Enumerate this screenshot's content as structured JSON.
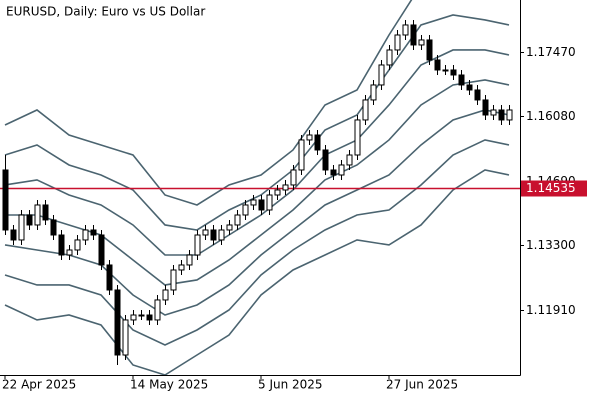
{
  "chart_data": {
    "type": "candlestick",
    "title": "EURUSD, Daily:  Euro vs US Dollar",
    "categories": [
      "22 Apr 2025",
      null,
      null,
      null,
      null,
      null,
      null,
      null,
      null,
      null,
      null,
      null,
      null,
      null,
      null,
      null,
      "14 May 2025",
      null,
      null,
      null,
      null,
      null,
      null,
      null,
      null,
      null,
      null,
      null,
      null,
      null,
      null,
      null,
      "5 Jun 2025",
      null,
      null,
      null,
      null,
      null,
      null,
      null,
      null,
      null,
      null,
      null,
      null,
      null,
      null,
      null,
      "27 Jun 2025",
      null,
      null,
      null,
      null,
      null,
      null,
      null,
      null,
      null,
      null,
      null,
      null,
      null,
      null,
      null
    ],
    "open": [
      1.14927,
      1.13634,
      1.13419,
      1.13957,
      1.13742,
      1.14173,
      1.1385,
      1.13526,
      1.13095,
      1.13203,
      1.13419,
      1.13634,
      1.13526,
      1.1288,
      1.12341,
      1.1094,
      1.11695,
      1.11802,
      1.11802,
      1.11695,
      1.12126,
      1.12341,
      1.12772,
      1.1288,
      1.13095,
      1.13526,
      1.13634,
      1.13419,
      1.13634,
      1.13742,
      1.13957,
      1.14173,
      1.14281,
      1.14065,
      1.14388,
      1.14496,
      1.14604,
      1.14927,
      1.15574,
      1.15681,
      1.15358,
      1.14927,
      1.14819,
      1.15035,
      1.1525,
      1.16005,
      1.16436,
      1.16759,
      1.1719,
      1.17513,
      1.17836,
      1.18052,
      1.17621,
      1.17729,
      1.17298,
      1.17082,
      1.17082,
      1.16974,
      1.16759,
      1.16651,
      1.16436,
      1.16112,
      1.1622,
      1.16005
    ],
    "high": [
      1.1525,
      1.13742,
      1.14065,
      1.14065,
      1.14281,
      1.14281,
      1.13957,
      1.13634,
      1.13311,
      1.13526,
      1.13742,
      1.13742,
      1.13634,
      1.12988,
      1.12449,
      1.11802,
      1.1191,
      1.1191,
      1.1191,
      1.12233,
      1.12449,
      1.1288,
      1.12988,
      1.13203,
      1.13634,
      1.13742,
      1.13742,
      1.13742,
      1.1385,
      1.14065,
      1.14281,
      1.14388,
      1.14388,
      1.14496,
      1.14604,
      1.14712,
      1.15035,
      1.15681,
      1.15789,
      1.15789,
      1.15466,
      1.15035,
      1.15143,
      1.15358,
      1.16112,
      1.16543,
      1.16867,
      1.17298,
      1.17621,
      1.17944,
      1.1816,
      1.1816,
      1.17836,
      1.17836,
      1.17405,
      1.1719,
      1.1719,
      1.17082,
      1.16867,
      1.16759,
      1.16543,
      1.16328,
      1.16328,
      1.16328
    ],
    "low": [
      1.13526,
      1.13311,
      1.13311,
      1.13634,
      1.13634,
      1.13742,
      1.13419,
      1.12988,
      1.12988,
      1.13095,
      1.13311,
      1.13419,
      1.12772,
      1.12233,
      1.10725,
      1.10833,
      1.11587,
      1.11695,
      1.11587,
      1.11587,
      1.12018,
      1.12233,
      1.12664,
      1.12772,
      1.12988,
      1.13419,
      1.13311,
      1.13311,
      1.13526,
      1.13634,
      1.1385,
      1.14065,
      1.13957,
      1.13957,
      1.14281,
      1.14388,
      1.14496,
      1.14819,
      1.15466,
      1.1525,
      1.14819,
      1.14712,
      1.14712,
      1.14927,
      1.15143,
      1.15897,
      1.16328,
      1.16651,
      1.17082,
      1.17405,
      1.17729,
      1.17513,
      1.17513,
      1.1719,
      1.16974,
      1.16974,
      1.16867,
      1.16651,
      1.16543,
      1.16328,
      1.16005,
      1.16005,
      1.15897,
      1.15897
    ],
    "close": [
      1.13634,
      1.13419,
      1.13957,
      1.13742,
      1.14173,
      1.1385,
      1.13526,
      1.13095,
      1.13203,
      1.13419,
      1.13634,
      1.13526,
      1.1288,
      1.12341,
      1.1094,
      1.11695,
      1.11802,
      1.11802,
      1.11695,
      1.12126,
      1.12341,
      1.12772,
      1.1288,
      1.13095,
      1.13526,
      1.13634,
      1.13419,
      1.13634,
      1.13742,
      1.13957,
      1.14173,
      1.14281,
      1.14065,
      1.14388,
      1.14496,
      1.14604,
      1.14927,
      1.15574,
      1.15681,
      1.15358,
      1.14927,
      1.14819,
      1.15035,
      1.1525,
      1.16005,
      1.16436,
      1.16759,
      1.1719,
      1.17513,
      1.17836,
      1.18052,
      1.17621,
      1.17729,
      1.17298,
      1.17082,
      1.17082,
      1.16974,
      1.16759,
      1.16651,
      1.16436,
      1.16112,
      1.1622,
      1.16005,
      1.1622
    ],
    "up_fill": "#ffffff",
    "down_fill": "#000000",
    "candle_stroke": "#000000",
    "bands": {
      "color": "#4b6470",
      "x": [
        0,
        4,
        8,
        12,
        16,
        20,
        24,
        28,
        32,
        36,
        40,
        44,
        48,
        52,
        56,
        60,
        63
      ],
      "lines": [
        [
          1.15897,
          1.1622,
          1.15681,
          1.15466,
          1.1525,
          1.14388,
          1.14173,
          1.14604,
          1.14819,
          1.15358,
          1.16328,
          1.16651,
          1.17836,
          1.18914,
          1.19022,
          1.18806,
          1.18698
        ],
        [
          1.1525,
          1.15466,
          1.15035,
          1.14819,
          1.14496,
          1.13742,
          1.13634,
          1.14065,
          1.14388,
          1.14927,
          1.15789,
          1.16112,
          1.17082,
          1.18052,
          1.18267,
          1.1816,
          1.18052
        ],
        [
          1.14604,
          1.14712,
          1.14388,
          1.14173,
          1.13742,
          1.13095,
          1.13095,
          1.13526,
          1.13957,
          1.14496,
          1.1525,
          1.15574,
          1.16328,
          1.1719,
          1.17513,
          1.17513,
          1.17405
        ],
        [
          1.13957,
          1.13957,
          1.13742,
          1.13526,
          1.12988,
          1.12449,
          1.12557,
          1.12988,
          1.13526,
          1.14065,
          1.14712,
          1.15035,
          1.15574,
          1.16328,
          1.16759,
          1.16867,
          1.16759
        ],
        [
          1.13311,
          1.13203,
          1.13095,
          1.1288,
          1.12233,
          1.11802,
          1.12018,
          1.12449,
          1.13095,
          1.13634,
          1.14173,
          1.14496,
          1.14819,
          1.15466,
          1.16005,
          1.1622,
          1.16112
        ],
        [
          1.12664,
          1.12449,
          1.12449,
          1.12233,
          1.11479,
          1.11156,
          1.11479,
          1.1191,
          1.12664,
          1.13203,
          1.13634,
          1.13957,
          1.14065,
          1.14604,
          1.1525,
          1.15574,
          1.15466
        ],
        [
          1.12018,
          1.11695,
          1.11802,
          1.11587,
          1.10725,
          1.10509,
          1.1094,
          1.11371,
          1.12233,
          1.12772,
          1.13095,
          1.13419,
          1.13311,
          1.13742,
          1.14496,
          1.14927,
          1.14819
        ]
      ]
    },
    "hline": {
      "value": 1.14535,
      "label": "1.14535",
      "color": "#c8102e"
    },
    "ylim": [
      1.10509,
      1.1859
    ],
    "yticks": [
      {
        "value": 1.1191,
        "label": "1.11910"
      },
      {
        "value": 1.133,
        "label": "1.13300"
      },
      {
        "value": 1.1469,
        "label": "1.14690"
      },
      {
        "value": 1.1608,
        "label": "1.16080"
      },
      {
        "value": 1.1747,
        "label": "1.17470"
      }
    ]
  }
}
